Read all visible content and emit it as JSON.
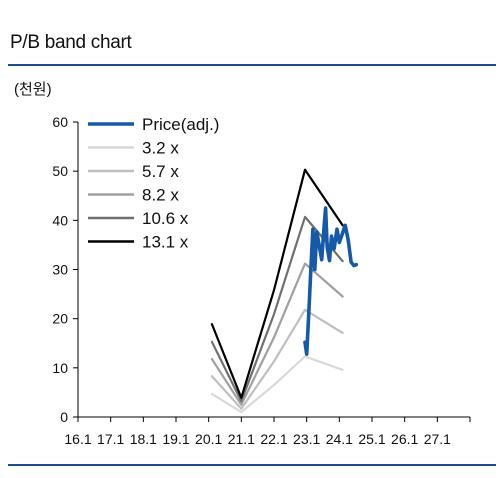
{
  "title": "P/B band chart",
  "unit_label": "(천원)",
  "colors": {
    "rule": "#1f4e8c",
    "price": "#1559a8",
    "bands": [
      "#d9d9d9",
      "#bfbfbf",
      "#a0a0a0",
      "#707070",
      "#000000"
    ]
  },
  "chart_data": {
    "type": "line",
    "title": "",
    "xlabel": "",
    "ylabel": "(천원)",
    "ylim": [
      0,
      60
    ],
    "yticks": [
      0,
      10,
      20,
      30,
      40,
      50,
      60
    ],
    "xticks": [
      "16.1",
      "17.1",
      "18.1",
      "19.1",
      "20.1",
      "21.1",
      "22.1",
      "23.1",
      "24.1",
      "25.1",
      "26.1",
      "27.1"
    ],
    "xlim": [
      2016.0,
      2028.0
    ],
    "legend": "top-left",
    "grid": false,
    "series": [
      {
        "name": "Price(adj.)",
        "color": "#1559a8",
        "points": [
          [
            2022.95,
            15.2
          ],
          [
            2023.0,
            12.8
          ],
          [
            2023.07,
            22.0
          ],
          [
            2023.14,
            31.5
          ],
          [
            2023.19,
            38.2
          ],
          [
            2023.25,
            30.0
          ],
          [
            2023.31,
            37.6
          ],
          [
            2023.38,
            35.0
          ],
          [
            2023.46,
            32.0
          ],
          [
            2023.53,
            38.5
          ],
          [
            2023.58,
            42.5
          ],
          [
            2023.63,
            34.5
          ],
          [
            2023.7,
            31.8
          ],
          [
            2023.76,
            36.8
          ],
          [
            2023.84,
            34.2
          ],
          [
            2023.93,
            38.2
          ],
          [
            2024.0,
            35.5
          ],
          [
            2024.08,
            37.0
          ],
          [
            2024.18,
            39.0
          ],
          [
            2024.27,
            36.0
          ],
          [
            2024.36,
            31.5
          ],
          [
            2024.45,
            30.8
          ],
          [
            2024.52,
            31.0
          ]
        ]
      },
      {
        "name": "3.2 x",
        "color": "#d9d9d9",
        "points": [
          [
            2020.1,
            4.7
          ],
          [
            2021.0,
            1.0
          ],
          [
            2022.0,
            6.5
          ],
          [
            2022.95,
            12.3
          ],
          [
            2024.1,
            9.6
          ]
        ]
      },
      {
        "name": "5.7 x",
        "color": "#bfbfbf",
        "points": [
          [
            2020.1,
            8.3
          ],
          [
            2021.0,
            1.7
          ],
          [
            2022.0,
            11.3
          ],
          [
            2022.95,
            21.8
          ],
          [
            2024.1,
            17.1
          ]
        ]
      },
      {
        "name": "8.2 x",
        "color": "#a0a0a0",
        "points": [
          [
            2020.1,
            11.8
          ],
          [
            2021.0,
            2.5
          ],
          [
            2022.0,
            16.2
          ],
          [
            2022.95,
            31.2
          ],
          [
            2024.1,
            24.5
          ]
        ]
      },
      {
        "name": "10.6 x",
        "color": "#707070",
        "points": [
          [
            2020.1,
            15.3
          ],
          [
            2021.0,
            3.2
          ],
          [
            2022.0,
            20.9
          ],
          [
            2022.95,
            40.7
          ],
          [
            2024.1,
            31.7
          ]
        ]
      },
      {
        "name": "13.1 x",
        "color": "#000000",
        "points": [
          [
            2020.1,
            18.9
          ],
          [
            2021.0,
            3.9
          ],
          [
            2022.0,
            25.8
          ],
          [
            2022.95,
            50.3
          ],
          [
            2024.1,
            39.0
          ]
        ]
      }
    ]
  }
}
